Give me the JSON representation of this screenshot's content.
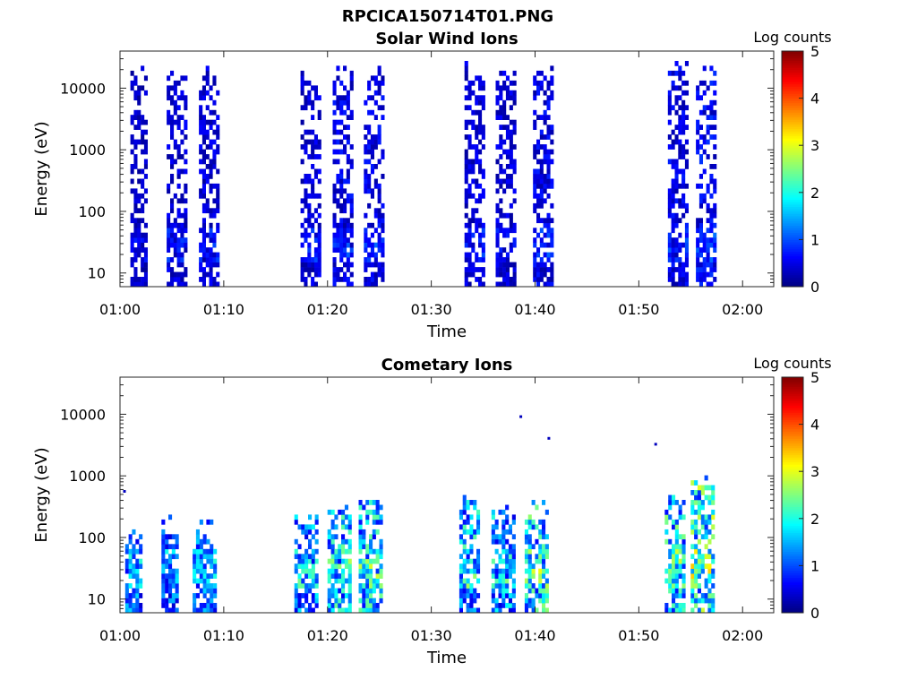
{
  "figure_title": "RPCICA150714T01.PNG",
  "chart_data": [
    {
      "type": "heatmap",
      "title": "Solar Wind Ions",
      "xlabel": "Time",
      "ylabel": "Energy (eV)",
      "yscale": "log",
      "ylim": [
        6,
        40000
      ],
      "xlim_minutes": [
        0,
        63
      ],
      "xticks": [
        "01:00",
        "01:10",
        "01:20",
        "01:30",
        "01:40",
        "01:50",
        "02:00"
      ],
      "xtick_minutes": [
        0,
        10,
        20,
        30,
        40,
        50,
        60
      ],
      "yticks": [
        "10",
        "100",
        "1000",
        "10000"
      ],
      "ytick_values": [
        10,
        100,
        1000,
        10000
      ],
      "colorbar": {
        "label": "Log counts",
        "range": [
          0,
          5
        ],
        "ticks": [
          "0",
          "1",
          "2",
          "3",
          "4",
          "5"
        ],
        "colormap": "jet"
      },
      "grid": false,
      "bursts": [
        {
          "start": "01:01",
          "end": "01:02.5",
          "emax": 20000,
          "level": 0.4
        },
        {
          "start": "01:04.5",
          "end": "01:06.3",
          "emax": 20000,
          "level": 0.5
        },
        {
          "start": "01:07.6",
          "end": "01:09.4",
          "emax": 20000,
          "level": 0.5
        },
        {
          "start": "01:17.4",
          "end": "01:19.2",
          "emax": 15000,
          "level": 0.5
        },
        {
          "start": "01:20.5",
          "end": "01:22.2",
          "emax": 20000,
          "level": 0.6
        },
        {
          "start": "01:23.5",
          "end": "01:25.3",
          "emax": 20000,
          "level": 0.6
        },
        {
          "start": "01:33.2",
          "end": "01:35",
          "emax": 20000,
          "level": 0.5
        },
        {
          "start": "01:36.2",
          "end": "01:38",
          "emax": 20000,
          "level": 0.5
        },
        {
          "start": "01:39.8",
          "end": "01:41.5",
          "emax": 20000,
          "level": 0.6
        },
        {
          "start": "01:52.8",
          "end": "01:54.5",
          "emax": 20000,
          "level": 0.6
        },
        {
          "start": "01:55.5",
          "end": "01:57.3",
          "emax": 20000,
          "level": 0.7
        }
      ]
    },
    {
      "type": "heatmap",
      "title": "Cometary Ions",
      "xlabel": "Time",
      "ylabel": "Energy (eV)",
      "yscale": "log",
      "ylim": [
        6,
        40000
      ],
      "xlim_minutes": [
        0,
        63
      ],
      "xticks": [
        "01:00",
        "01:10",
        "01:20",
        "01:30",
        "01:40",
        "01:50",
        "02:00"
      ],
      "xtick_minutes": [
        0,
        10,
        20,
        30,
        40,
        50,
        60
      ],
      "yticks": [
        "10",
        "100",
        "1000",
        "10000"
      ],
      "ytick_values": [
        10,
        100,
        1000,
        10000
      ],
      "colorbar": {
        "label": "Log counts",
        "range": [
          0,
          5
        ],
        "ticks": [
          "0",
          "1",
          "2",
          "3",
          "4",
          "5"
        ],
        "colormap": "jet"
      },
      "grid": false,
      "bursts": [
        {
          "start": "01:00.5",
          "end": "01:02",
          "emax": 130,
          "level": 1.3
        },
        {
          "start": "01:04",
          "end": "01:05.5",
          "emax": 180,
          "level": 1.2
        },
        {
          "start": "01:07",
          "end": "01:09",
          "emax": 150,
          "level": 1.3
        },
        {
          "start": "01:16.8",
          "end": "01:18.8",
          "emax": 200,
          "level": 1.5
        },
        {
          "start": "01:20",
          "end": "01:22",
          "emax": 300,
          "level": 1.9
        },
        {
          "start": "01:23",
          "end": "01:25",
          "emax": 400,
          "level": 1.9
        },
        {
          "start": "01:32.7",
          "end": "01:34.5",
          "emax": 400,
          "level": 1.8
        },
        {
          "start": "01:35.8",
          "end": "01:37.8",
          "emax": 250,
          "level": 1.6
        },
        {
          "start": "01:39",
          "end": "01:41",
          "emax": 300,
          "level": 2.0
        },
        {
          "start": "01:52.5",
          "end": "01:54.2",
          "emax": 400,
          "level": 2.0
        },
        {
          "start": "01:55",
          "end": "01:57.2",
          "emax": 800,
          "level": 2.3
        }
      ],
      "isolated_points": [
        {
          "time": "01:38.5",
          "energy": 9000,
          "level": 0.3
        },
        {
          "time": "01:41.2",
          "energy": 4000,
          "level": 0.3
        },
        {
          "time": "01:51.5",
          "energy": 3200,
          "level": 0.3
        },
        {
          "time": "01:00.3",
          "energy": 550,
          "level": 0.3
        }
      ]
    }
  ]
}
